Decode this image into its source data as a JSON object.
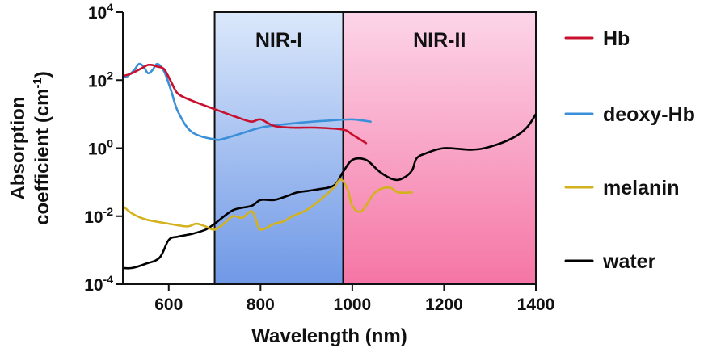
{
  "chart_data": {
    "type": "line",
    "xlabel": "Wavelength (nm)",
    "ylabel_line1": "Absorption",
    "ylabel_line2": "coefficient (cm",
    "ylabel_sup": "-1",
    "ylabel_close": ")",
    "xlim": [
      500,
      1400
    ],
    "x_ticks": [
      600,
      800,
      1000,
      1200,
      1400
    ],
    "y_scale": "log",
    "ylim": [
      0.0001,
      10000
    ],
    "y_ticks": [
      {
        "value": 0.0001,
        "base": "10",
        "exp": "-4"
      },
      {
        "value": 0.01,
        "base": "10",
        "exp": "-2"
      },
      {
        "value": 1,
        "base": "10",
        "exp": "0"
      },
      {
        "value": 100,
        "base": "10",
        "exp": "2"
      },
      {
        "value": 10000,
        "base": "10",
        "exp": "4"
      }
    ],
    "regions": [
      {
        "label": "NIR-I",
        "x": [
          700,
          980
        ]
      },
      {
        "label": "NIR-II",
        "x": [
          980,
          1400
        ]
      }
    ],
    "legend_position": "right",
    "series": [
      {
        "name": "Hb",
        "color": "#c8102e",
        "x": [
          500,
          520,
          540,
          555,
          565,
          575,
          590,
          605,
          620,
          650,
          700,
          750,
          780,
          800,
          830,
          870,
          920,
          980,
          1000,
          1030
        ],
        "y": [
          130,
          160,
          220,
          280,
          275,
          250,
          210,
          90,
          40,
          25,
          14,
          8,
          6,
          7,
          4.5,
          4,
          4,
          3.5,
          2.5,
          1.4
        ]
      },
      {
        "name": "deoxy-Hb",
        "color": "#3a8fd9",
        "x": [
          500,
          510,
          525,
          535,
          545,
          555,
          565,
          575,
          590,
          605,
          620,
          650,
          700,
          720,
          750,
          800,
          850,
          900,
          950,
          1000,
          1040
        ],
        "y": [
          120,
          130,
          200,
          300,
          250,
          160,
          200,
          300,
          180,
          50,
          12,
          3,
          1.8,
          1.9,
          2.5,
          4,
          5,
          5.8,
          6.5,
          7,
          6
        ]
      },
      {
        "name": "melanin",
        "color": "#d4b21d",
        "x": [
          500,
          520,
          550,
          600,
          640,
          660,
          680,
          700,
          720,
          740,
          760,
          780,
          790,
          800,
          830,
          850,
          870,
          900,
          930,
          960,
          975,
          990,
          1000,
          1020,
          1050,
          1080,
          1100,
          1130
        ],
        "y": [
          0.02,
          0.012,
          0.008,
          0.006,
          0.005,
          0.006,
          0.005,
          0.004,
          0.006,
          0.01,
          0.009,
          0.014,
          0.008,
          0.004,
          0.006,
          0.007,
          0.01,
          0.015,
          0.03,
          0.07,
          0.12,
          0.06,
          0.02,
          0.014,
          0.05,
          0.07,
          0.05,
          0.05
        ]
      },
      {
        "name": "water",
        "color": "#000000",
        "x": [
          500,
          520,
          550,
          580,
          600,
          620,
          650,
          680,
          700,
          740,
          780,
          800,
          830,
          860,
          880,
          920,
          960,
          980,
          1000,
          1030,
          1060,
          1090,
          1110,
          1130,
          1140,
          1160,
          1200,
          1260,
          1300,
          1350,
          1380,
          1400
        ],
        "y": [
          0.0003,
          0.0003,
          0.0004,
          0.0006,
          0.002,
          0.0025,
          0.003,
          0.004,
          0.006,
          0.015,
          0.02,
          0.03,
          0.03,
          0.04,
          0.05,
          0.06,
          0.08,
          0.2,
          0.45,
          0.45,
          0.2,
          0.12,
          0.13,
          0.22,
          0.5,
          0.7,
          1.0,
          0.9,
          1.1,
          2,
          4,
          10
        ]
      }
    ]
  }
}
